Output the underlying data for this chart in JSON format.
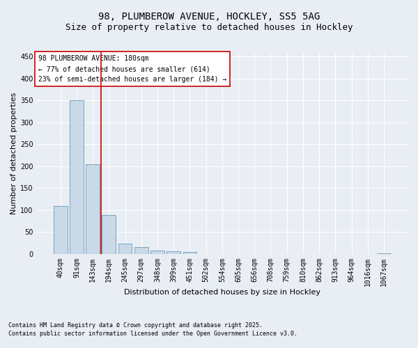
{
  "title1": "98, PLUMBEROW AVENUE, HOCKLEY, SS5 5AG",
  "title2": "Size of property relative to detached houses in Hockley",
  "xlabel": "Distribution of detached houses by size in Hockley",
  "ylabel": "Number of detached properties",
  "bins": [
    "40sqm",
    "91sqm",
    "143sqm",
    "194sqm",
    "245sqm",
    "297sqm",
    "348sqm",
    "399sqm",
    "451sqm",
    "502sqm",
    "554sqm",
    "605sqm",
    "656sqm",
    "708sqm",
    "759sqm",
    "810sqm",
    "862sqm",
    "913sqm",
    "964sqm",
    "1016sqm",
    "1067sqm"
  ],
  "values": [
    110,
    350,
    205,
    88,
    23,
    15,
    8,
    6,
    5,
    0,
    0,
    0,
    0,
    0,
    0,
    0,
    0,
    0,
    0,
    0,
    2
  ],
  "bar_color": "#c9d9e8",
  "bar_edge_color": "#6699bb",
  "vline_x_index": 2.5,
  "vline_color": "#cc0000",
  "ylim": [
    0,
    460
  ],
  "yticks": [
    0,
    50,
    100,
    150,
    200,
    250,
    300,
    350,
    400,
    450
  ],
  "annotation_text": "98 PLUMBEROW AVENUE: 180sqm\n← 77% of detached houses are smaller (614)\n23% of semi-detached houses are larger (184) →",
  "annotation_box_color": "#ffffff",
  "annotation_box_edge": "#cc0000",
  "footnote1": "Contains HM Land Registry data © Crown copyright and database right 2025.",
  "footnote2": "Contains public sector information licensed under the Open Government Licence v3.0.",
  "bg_color": "#e8eef4",
  "grid_color": "#ffffff",
  "title1_fontsize": 10,
  "title2_fontsize": 9,
  "axis_fontsize": 8,
  "tick_fontsize": 7,
  "annot_fontsize": 7,
  "footnote_fontsize": 6
}
